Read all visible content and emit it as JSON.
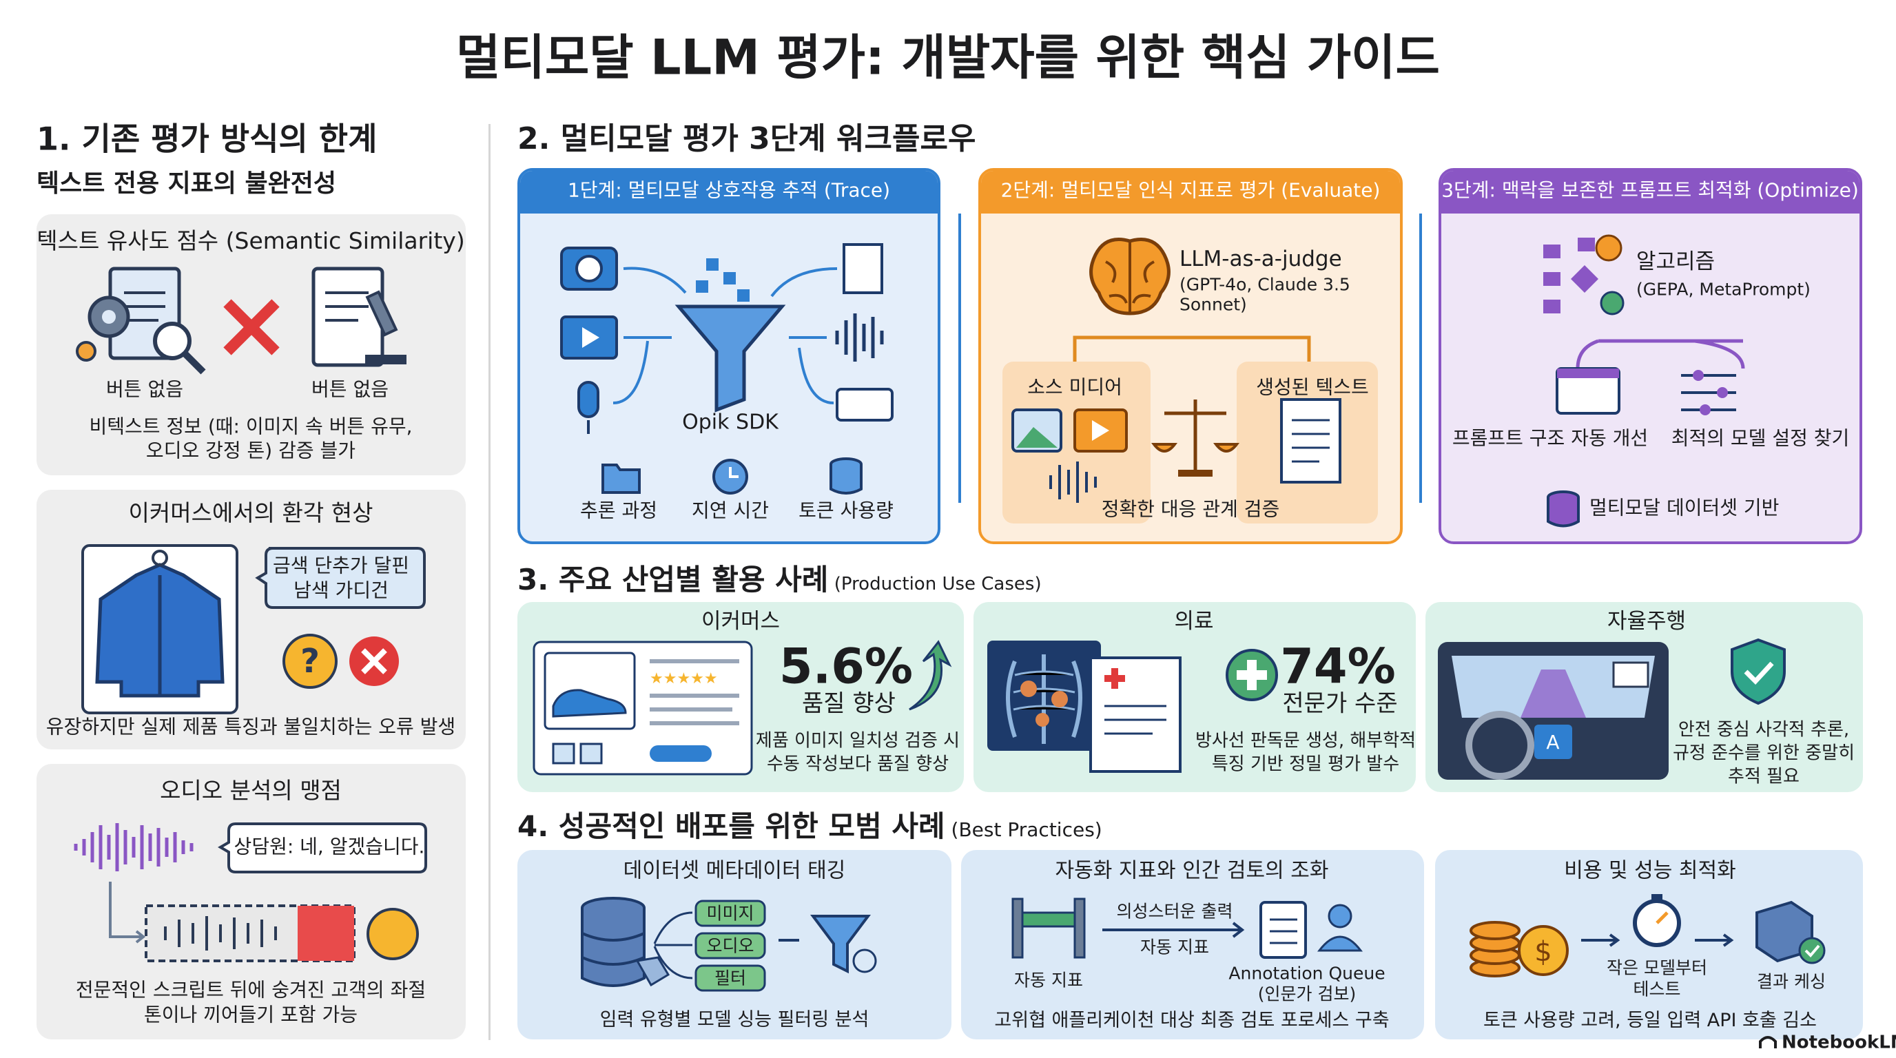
{
  "header": {
    "title": "멀티모달 LLM 평가: 개발자를 위한 핵심 가이드"
  },
  "section1": {
    "heading": "1. 기존 평가 방식의 한계",
    "subheading": "텍스트 전용 지표의 불완전성",
    "cards": [
      {
        "title": "텍스트 유사도 점수 (Semantic Similarity)",
        "labels": [
          "버튼 없음",
          "버튼 없음"
        ],
        "caption": [
          "비텍스트 정보 (때: 이미지 속 버튼 유무,",
          "오디오 강정 톤) 감증 블가"
        ]
      },
      {
        "title": "이커머스에서의 환각 현상",
        "bubble": [
          "금색 단추가 달핀",
          "남색 가디건"
        ],
        "caption": [
          "유장하지만 실제 제품 특징과 불일치하는 오류 발생"
        ]
      },
      {
        "title": "오디오 분석의 맹점",
        "bubble": [
          "상담원: 네, 알겠습니다."
        ],
        "caption": [
          "전문적인 스크립트 뒤에 숭겨진 고객의 좌절",
          "톤이나 끼어들기 포함 가능"
        ]
      }
    ]
  },
  "section2": {
    "heading": "2. 멀티모달 평가 3단계 워크플로우",
    "stages": [
      {
        "title": "1단계: 멀티모달 상호작용 추적 (Trace)",
        "center": "Opik SDK",
        "labels": [
          "추론 과정",
          "지연 시간",
          "토큰 사용량"
        ]
      },
      {
        "title": "2단계: 멀티모달 인식 지표로 평가 (Evaluate)",
        "judge": "LLM-as-a-judge",
        "judge_detail": [
          "(GPT-4o, Claude 3.5",
          "Sonnet)"
        ],
        "left": "소스 미디어",
        "right": "생성된 텍스트",
        "caption": "정확한 대응 관계 검증"
      },
      {
        "title": "3단계: 맥락을 보존한 프롬프트 최적화 (Optimize)",
        "algo": "알고리즘",
        "algo_detail": "(GEPA, MetaPrompt)",
        "left": "프롬프트 구조 자동 개선",
        "right": "최적의 모델 설정 찾기",
        "bottom": "멀티모달 데이터셋 기반"
      }
    ]
  },
  "section3": {
    "heading": "3. 주요 산업별 활용 사례",
    "subheading": "(Production Use Cases)",
    "cases": [
      {
        "title": "이커머스",
        "stat": "5.6%",
        "stat_label": "품질 향상",
        "caption": [
          "제품 이미지 일치성 검증 시",
          "수동 작성보다 품질 향상"
        ]
      },
      {
        "title": "의료",
        "stat": "74%",
        "stat_label": "전문가 수준",
        "caption": [
          "방사선 판독문 생성, 해부학적",
          "특징 기반 정밀 평가 발수"
        ]
      },
      {
        "title": "자율주행",
        "caption": [
          "안전 중심 사각적 추론,",
          "규정 준수를 위한 중말히",
          "추적 필요"
        ]
      }
    ]
  },
  "section4": {
    "heading": "4. 성공적인 배포를 위한 모범 사례",
    "subheading": "(Best Practices)",
    "practices": [
      {
        "title": "데이터셋 메타데이터 태깅",
        "tags": [
          "미미지",
          "오디오",
          "필터"
        ],
        "caption": "임력 유형별 모델 싱능 필터링 분석"
      },
      {
        "title": "자동화 지표와 인간 검토의 조화",
        "barrier_label": "자동 지표",
        "arrow_top": "의성스터운 출력",
        "arrow_bottom": "자동 지표",
        "queue": "Annotation Queue",
        "queue_detail": "(인문가 검보)",
        "caption": "고위협 애플리케이천 대상 최종 검토 포로세스 구축"
      },
      {
        "title": "비용 및 성능 최적화",
        "step": [
          "작은 모델부터",
          "테스트"
        ],
        "cache": "결과 케싱",
        "caption": "토큰 사용량 고려, 등일 입력 API 호출 김소"
      }
    ]
  },
  "footer": {
    "brand": "NotebookLM"
  }
}
